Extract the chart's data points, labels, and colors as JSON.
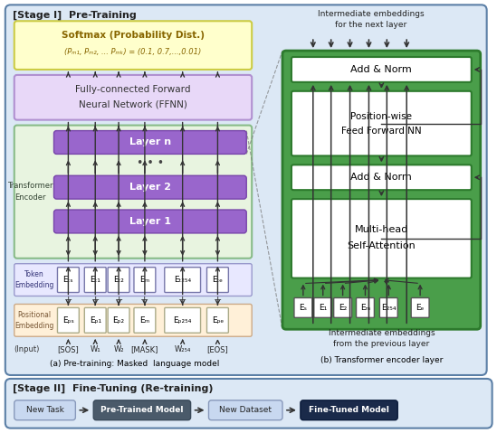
{
  "fig_w": 5.49,
  "fig_h": 4.79,
  "dpi": 100,
  "bg": "#ffffff",
  "s1_fill": "#dce8f5",
  "s1_edge": "#5b7fa6",
  "s2_fill": "#dce8f5",
  "s2_edge": "#5b7fa6",
  "softmax_fill": "#ffffcc",
  "softmax_edge": "#cccc44",
  "ffnn_fill": "#e8d8f8",
  "ffnn_edge": "#b090d0",
  "trans_bg": "#e8f4e0",
  "trans_edge": "#88bb88",
  "layer_fill": "#9966cc",
  "layer_edge": "#7744aa",
  "tok_fill": "#e8e8ff",
  "tok_edge": "#9999cc",
  "pos_fill": "#fff0d8",
  "pos_edge": "#ccaa88",
  "green_outer": "#4a9e4a",
  "green_edge": "#2d7a2d",
  "white_inner": "#ffffff",
  "newtask_fill": "#c8d8f0",
  "newtask_edge": "#8899bb",
  "pretrained_fill": "#4a5a6a",
  "pretrained_edge": "#3a4a5a",
  "newdata_fill": "#c8d8f0",
  "newdata_edge": "#8899bb",
  "finetuned_fill": "#1a2a4a",
  "finetuned_edge": "#0a1a3a",
  "arr": "#333333",
  "stage1_label": "[Stage I]  Pre-Training",
  "stage2_label": "[Stage II]  Fine-Tuning (Re-training)",
  "softmax_title": "Softmax (Probability Dist.)",
  "softmax_sub": "(Pₘ₁, Pₘ₂, ... Pₘₖ) = (0.1, 0.7,...,0.01)",
  "ffnn_line1": "Fully-connected Forward",
  "ffnn_line2": "Neural Network (FFNN)",
  "layer_n": "Layer n",
  "layer_2": "Layer 2",
  "layer_1": "Layer 1",
  "trans_enc": "Transformer\nEncoder",
  "tok_emb": "Token\nEmbedding",
  "pos_emb": "Positional\nEmbedding",
  "input_lbl": "(Input)",
  "input_tokens": [
    "[SOS]",
    "W₁",
    "W₂",
    "[MASK]",
    "W₂₅₄",
    "[EOS]"
  ],
  "tok_boxes": [
    "Eₜₛ",
    "Eₜ₁",
    "Eₜ₂",
    "Eₘ",
    "Eₜ₂₅₄",
    "Eₜₑ"
  ],
  "pos_boxes": [
    "Eₚₛ",
    "Eₚ₁",
    "Eₚ₂",
    "Eₘ",
    "Eₚ₂₅₄",
    "Eₚₑ"
  ],
  "caption_a": "(a) Pre-training: Masked  language model",
  "caption_b": "(b) Transformer encoder layer",
  "inter_next": "Intermediate embeddings\nfor the next layer",
  "inter_prev": "Intermediate embeddings\nfrom the previous layer",
  "add_norm": "Add & Norm",
  "pos_ff": "Position-wise\nFeed Forward NN",
  "multihead": "Multi-head\nSelf-Attention",
  "e_labels": [
    "Eₛ",
    "E₁",
    "E₂",
    "Eₘ",
    "E₂₅₄",
    "Eₑ"
  ],
  "newtask": "New Task",
  "pretrained": "Pre-Trained Model",
  "newdata": "New Dataset",
  "finetuned": "Fine-Tuned Model"
}
